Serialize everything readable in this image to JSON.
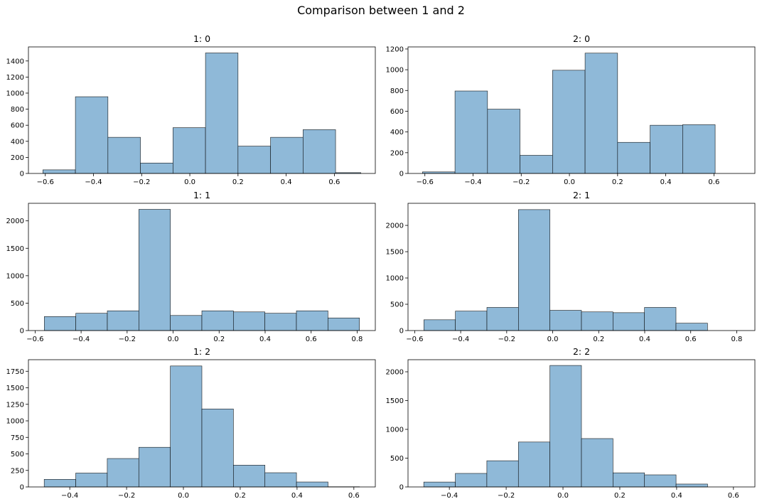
{
  "figure": {
    "title": "Comparison between 1 and 2",
    "bar_color": "#8fb9d8",
    "edge_color": "#000000"
  },
  "chart_data": [
    {
      "type": "bar",
      "title": "1: 0",
      "bin_edges": [
        -0.61,
        -0.475,
        -0.34,
        -0.205,
        -0.07,
        0.065,
        0.2,
        0.335,
        0.47,
        0.605,
        0.71
      ],
      "values": [
        45,
        955,
        450,
        130,
        570,
        1500,
        340,
        450,
        545,
        10
      ],
      "xlim": [
        -0.67,
        0.77
      ],
      "ylim": [
        0,
        1575
      ],
      "xticks": [
        -0.6,
        -0.4,
        -0.2,
        0.0,
        0.2,
        0.4,
        0.6
      ],
      "xtick_labels": [
        "−0.6",
        "−0.4",
        "−0.2",
        "0.0",
        "0.2",
        "0.4",
        "0.6"
      ],
      "yticks": [
        0,
        200,
        400,
        600,
        800,
        1000,
        1200,
        1400
      ],
      "ytick_labels": [
        "0",
        "200",
        "400",
        "600",
        "800",
        "1000",
        "1200",
        "1400"
      ]
    },
    {
      "type": "bar",
      "title": "2: 0",
      "bin_edges": [
        -0.61,
        -0.475,
        -0.34,
        -0.205,
        -0.07,
        0.065,
        0.2,
        0.335,
        0.47,
        0.605
      ],
      "values": [
        15,
        795,
        620,
        175,
        995,
        1160,
        300,
        465,
        470
      ],
      "xlim": [
        -0.67,
        0.77
      ],
      "ylim": [
        0,
        1220
      ],
      "xticks": [
        -0.6,
        -0.4,
        -0.2,
        0.0,
        0.2,
        0.4,
        0.6
      ],
      "xtick_labels": [
        "−0.6",
        "−0.4",
        "−0.2",
        "0.0",
        "0.2",
        "0.4",
        "0.6"
      ],
      "yticks": [
        0,
        200,
        400,
        600,
        800,
        1000,
        1200
      ],
      "ytick_labels": [
        "0",
        "200",
        "400",
        "600",
        "800",
        "1000",
        "1200"
      ]
    },
    {
      "type": "bar",
      "title": "1: 1",
      "bin_edges": [
        -0.56,
        -0.423,
        -0.286,
        -0.149,
        -0.012,
        0.125,
        0.262,
        0.399,
        0.536,
        0.673,
        0.81
      ],
      "values": [
        255,
        315,
        360,
        2210,
        275,
        360,
        340,
        315,
        360,
        230
      ],
      "xlim": [
        -0.629,
        0.879
      ],
      "ylim": [
        0,
        2320
      ],
      "xticks": [
        -0.6,
        -0.4,
        -0.2,
        0.0,
        0.2,
        0.4,
        0.6,
        0.8
      ],
      "xtick_labels": [
        "−0.6",
        "−0.4",
        "−0.2",
        "0.0",
        "0.2",
        "0.4",
        "0.6",
        "0.8"
      ],
      "yticks": [
        0,
        500,
        1000,
        1500,
        2000
      ],
      "ytick_labels": [
        "0",
        "500",
        "1000",
        "1500",
        "2000"
      ]
    },
    {
      "type": "bar",
      "title": "2: 1",
      "bin_edges": [
        -0.56,
        -0.423,
        -0.286,
        -0.149,
        -0.012,
        0.125,
        0.262,
        0.399,
        0.536,
        0.673
      ],
      "values": [
        205,
        370,
        440,
        2300,
        385,
        355,
        340,
        440,
        140
      ],
      "xlim": [
        -0.629,
        0.879
      ],
      "ylim": [
        0,
        2420
      ],
      "xticks": [
        -0.6,
        -0.4,
        -0.2,
        0.0,
        0.2,
        0.4,
        0.6,
        0.8
      ],
      "xtick_labels": [
        "−0.6",
        "−0.4",
        "−0.2",
        "0.0",
        "0.2",
        "0.4",
        "0.6",
        "0.8"
      ],
      "yticks": [
        0,
        500,
        1000,
        1500,
        2000
      ],
      "ytick_labels": [
        "0",
        "500",
        "1000",
        "1500",
        "2000"
      ]
    },
    {
      "type": "bar",
      "title": "1: 2",
      "bin_edges": [
        -0.49,
        -0.379,
        -0.268,
        -0.157,
        -0.046,
        0.065,
        0.176,
        0.287,
        0.398,
        0.509,
        0.62
      ],
      "values": [
        115,
        210,
        430,
        600,
        1830,
        1180,
        330,
        215,
        75,
        3
      ],
      "xlim": [
        -0.5455,
        0.6755
      ],
      "ylim": [
        0,
        1925
      ],
      "xticks": [
        -0.4,
        -0.2,
        0.0,
        0.2,
        0.4,
        0.6
      ],
      "xtick_labels": [
        "−0.4",
        "−0.2",
        "0.0",
        "0.2",
        "0.4",
        "0.6"
      ],
      "yticks": [
        0,
        250,
        500,
        750,
        1000,
        1250,
        1500,
        1750
      ],
      "ytick_labels": [
        "0",
        "250",
        "500",
        "750",
        "1000",
        "1250",
        "1500",
        "1750"
      ]
    },
    {
      "type": "bar",
      "title": "2: 2",
      "bin_edges": [
        -0.49,
        -0.379,
        -0.268,
        -0.157,
        -0.046,
        0.065,
        0.176,
        0.287,
        0.398,
        0.509
      ],
      "values": [
        85,
        235,
        455,
        780,
        2110,
        840,
        245,
        210,
        50
      ],
      "xlim": [
        -0.5455,
        0.6755
      ],
      "ylim": [
        0,
        2210
      ],
      "xticks": [
        -0.4,
        -0.2,
        0.0,
        0.2,
        0.4,
        0.6
      ],
      "xtick_labels": [
        "−0.4",
        "−0.2",
        "0.0",
        "0.2",
        "0.4",
        "0.6"
      ],
      "yticks": [
        0,
        500,
        1000,
        1500,
        2000
      ],
      "ytick_labels": [
        "0",
        "500",
        "1000",
        "1500",
        "2000"
      ]
    }
  ]
}
